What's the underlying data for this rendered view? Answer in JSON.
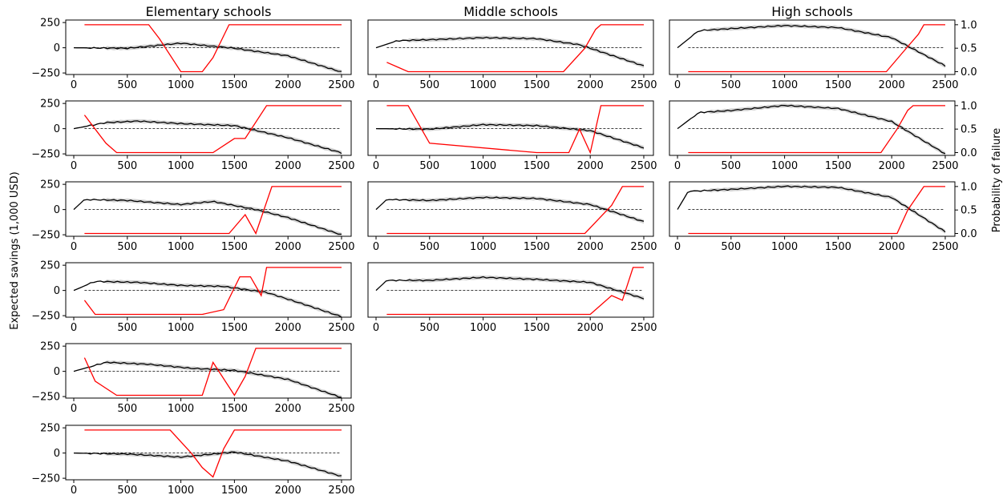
{
  "figure": {
    "column_titles": [
      "Elementary schools",
      "Middle schools",
      "High schools"
    ],
    "ylabel_left": "Expected savings (1,000 USD)",
    "ylabel_right": "Probability of failure"
  },
  "colors": {
    "savings_line": "#000000",
    "band": "#d3d3d3",
    "failure_line": "#ff0000",
    "zero_line": "#000000"
  },
  "chart_data": [
    {
      "type": "line",
      "column": "Elementary schools",
      "row": 1,
      "xlim": [
        0,
        2500
      ],
      "ylim": [
        -250,
        250
      ],
      "prob_ylim": [
        0,
        1
      ],
      "x": [
        0,
        500,
        1000,
        1500,
        2000,
        2500
      ],
      "savings": [
        0,
        -5,
        45,
        -5,
        -80,
        -240
      ],
      "probability_x": [
        100,
        700,
        800,
        1000,
        1200,
        1300,
        1450,
        1700,
        2500
      ],
      "probability": [
        1.0,
        1.0,
        0.7,
        0.0,
        0.0,
        0.3,
        1.0,
        1.0,
        1.0
      ]
    },
    {
      "type": "line",
      "column": "Middle schools",
      "row": 1,
      "xlim": [
        0,
        2500
      ],
      "ylim": [
        -250,
        250
      ],
      "prob_ylim": [
        0,
        1
      ],
      "x": [
        0,
        200,
        500,
        1000,
        1500,
        1900,
        2500
      ],
      "savings": [
        0,
        70,
        80,
        100,
        90,
        30,
        -180
      ],
      "probability_x": [
        100,
        200,
        300,
        500,
        1750,
        1950,
        2050,
        2100,
        2500
      ],
      "probability": [
        0.2,
        0.1,
        0.0,
        0.0,
        0.0,
        0.5,
        0.9,
        1.0,
        1.0
      ]
    },
    {
      "type": "line",
      "column": "High schools",
      "row": 1,
      "xlim": [
        0,
        2500
      ],
      "ylim": [
        -250,
        250
      ],
      "prob_ylim": [
        0,
        1
      ],
      "x": [
        0,
        200,
        500,
        1000,
        1500,
        2000,
        2500
      ],
      "savings": [
        0,
        170,
        190,
        220,
        200,
        100,
        -180
      ],
      "probability_x": [
        100,
        1950,
        2100,
        2250,
        2300,
        2500
      ],
      "probability": [
        0.0,
        0.0,
        0.4,
        0.8,
        1.0,
        1.0
      ]
    },
    {
      "type": "line",
      "column": "Elementary schools",
      "row": 2,
      "xlim": [
        0,
        2500
      ],
      "ylim": [
        -250,
        250
      ],
      "prob_ylim": [
        0,
        1
      ],
      "x": [
        0,
        300,
        600,
        1000,
        1500,
        2000,
        2500
      ],
      "savings": [
        0,
        60,
        75,
        50,
        30,
        -90,
        -240
      ],
      "probability_x": [
        100,
        200,
        300,
        400,
        500,
        1300,
        1500,
        1600,
        1800,
        2500
      ],
      "probability": [
        0.8,
        0.5,
        0.2,
        0.0,
        0.0,
        0.0,
        0.3,
        0.3,
        1.0,
        1.0
      ]
    },
    {
      "type": "line",
      "column": "Middle schools",
      "row": 2,
      "xlim": [
        0,
        2500
      ],
      "ylim": [
        -250,
        250
      ],
      "prob_ylim": [
        0,
        1
      ],
      "x": [
        0,
        500,
        1000,
        1500,
        2000,
        2500
      ],
      "savings": [
        0,
        -5,
        40,
        30,
        -20,
        -190
      ],
      "probability_x": [
        100,
        300,
        500,
        1500,
        1800,
        1900,
        2000,
        2100,
        2500
      ],
      "probability": [
        1.0,
        1.0,
        0.2,
        0.0,
        0.0,
        0.5,
        0.0,
        1.0,
        1.0
      ]
    },
    {
      "type": "line",
      "column": "High schools",
      "row": 2,
      "xlim": [
        0,
        2500
      ],
      "ylim": [
        -250,
        250
      ],
      "prob_ylim": [
        0,
        1
      ],
      "x": [
        0,
        200,
        500,
        1000,
        1500,
        2000,
        2500
      ],
      "savings": [
        0,
        160,
        180,
        230,
        200,
        70,
        -250
      ],
      "probability_x": [
        100,
        1900,
        2050,
        2150,
        2200,
        2500
      ],
      "probability": [
        0.0,
        0.0,
        0.5,
        0.9,
        1.0,
        1.0
      ]
    },
    {
      "type": "line",
      "column": "Elementary schools",
      "row": 3,
      "xlim": [
        0,
        2500
      ],
      "ylim": [
        -250,
        250
      ],
      "prob_ylim": [
        0,
        1
      ],
      "x": [
        0,
        100,
        500,
        1000,
        1300,
        1700,
        2000,
        2500
      ],
      "savings": [
        0,
        100,
        90,
        50,
        80,
        0,
        -80,
        -250
      ],
      "probability_x": [
        100,
        1450,
        1600,
        1700,
        1850,
        2500
      ],
      "probability": [
        0.0,
        0.0,
        0.4,
        0.0,
        1.0,
        1.0
      ]
    },
    {
      "type": "line",
      "column": "Middle schools",
      "row": 3,
      "xlim": [
        0,
        2500
      ],
      "ylim": [
        -250,
        250
      ],
      "prob_ylim": [
        0,
        1
      ],
      "x": [
        0,
        100,
        500,
        1000,
        1500,
        2000,
        2500
      ],
      "savings": [
        0,
        100,
        90,
        120,
        110,
        50,
        -120
      ],
      "probability_x": [
        100,
        1950,
        2200,
        2300,
        2500
      ],
      "probability": [
        0.0,
        0.0,
        0.6,
        1.0,
        1.0
      ]
    },
    {
      "type": "line",
      "column": "High schools",
      "row": 3,
      "xlim": [
        0,
        2500
      ],
      "ylim": [
        -250,
        250
      ],
      "prob_ylim": [
        0,
        1
      ],
      "x": [
        0,
        100,
        500,
        1000,
        1500,
        2000,
        2500
      ],
      "savings": [
        0,
        180,
        200,
        230,
        220,
        120,
        -220
      ],
      "probability_x": [
        100,
        2050,
        2150,
        2300,
        2500
      ],
      "probability": [
        0.0,
        0.0,
        0.5,
        1.0,
        1.0
      ]
    },
    {
      "type": "line",
      "column": "Elementary schools",
      "row": 4,
      "xlim": [
        0,
        2500
      ],
      "ylim": [
        -250,
        250
      ],
      "prob_ylim": [
        0,
        1
      ],
      "x": [
        0,
        200,
        600,
        1000,
        1400,
        1800,
        2100,
        2500
      ],
      "savings": [
        0,
        90,
        80,
        50,
        40,
        -20,
        -120,
        -260
      ],
      "probability_x": [
        100,
        200,
        300,
        1200,
        1400,
        1550,
        1650,
        1750,
        1800,
        2500
      ],
      "probability": [
        0.3,
        0.0,
        0.0,
        0.0,
        0.1,
        0.8,
        0.8,
        0.4,
        1.0,
        1.0
      ]
    },
    {
      "type": "line",
      "column": "Middle schools",
      "row": 4,
      "xlim": [
        0,
        2500
      ],
      "ylim": [
        -250,
        250
      ],
      "prob_ylim": [
        0,
        1
      ],
      "x": [
        0,
        100,
        500,
        1000,
        1500,
        2000,
        2500
      ],
      "savings": [
        0,
        100,
        100,
        130,
        110,
        80,
        -80
      ],
      "probability_x": [
        100,
        2000,
        2200,
        2300,
        2400,
        2500
      ],
      "probability": [
        0.0,
        0.0,
        0.4,
        0.3,
        1.0,
        1.0
      ]
    },
    {
      "type": "line",
      "column": "Elementary schools",
      "row": 5,
      "xlim": [
        0,
        2500
      ],
      "ylim": [
        -250,
        250
      ],
      "prob_ylim": [
        0,
        1
      ],
      "x": [
        0,
        300,
        700,
        1100,
        1500,
        2000,
        2500
      ],
      "savings": [
        0,
        90,
        70,
        30,
        10,
        -80,
        -260
      ],
      "probability_x": [
        100,
        200,
        400,
        500,
        1200,
        1300,
        1500,
        1600,
        1700,
        1800,
        2500
      ],
      "probability": [
        0.8,
        0.3,
        0.0,
        0.0,
        0.0,
        0.7,
        0.0,
        0.4,
        1.0,
        1.0,
        1.0
      ]
    },
    {
      "type": "line",
      "column": "Elementary schools",
      "row": 6,
      "xlim": [
        0,
        2500
      ],
      "ylim": [
        -250,
        250
      ],
      "prob_ylim": [
        0,
        1
      ],
      "x": [
        0,
        500,
        1000,
        1500,
        2000,
        2500
      ],
      "savings": [
        0,
        -10,
        -40,
        10,
        -80,
        -230
      ],
      "probability_x": [
        100,
        900,
        1100,
        1200,
        1300,
        1400,
        1500,
        2500
      ],
      "probability": [
        1.0,
        1.0,
        0.5,
        0.2,
        0.0,
        0.6,
        1.0,
        1.0
      ]
    }
  ]
}
